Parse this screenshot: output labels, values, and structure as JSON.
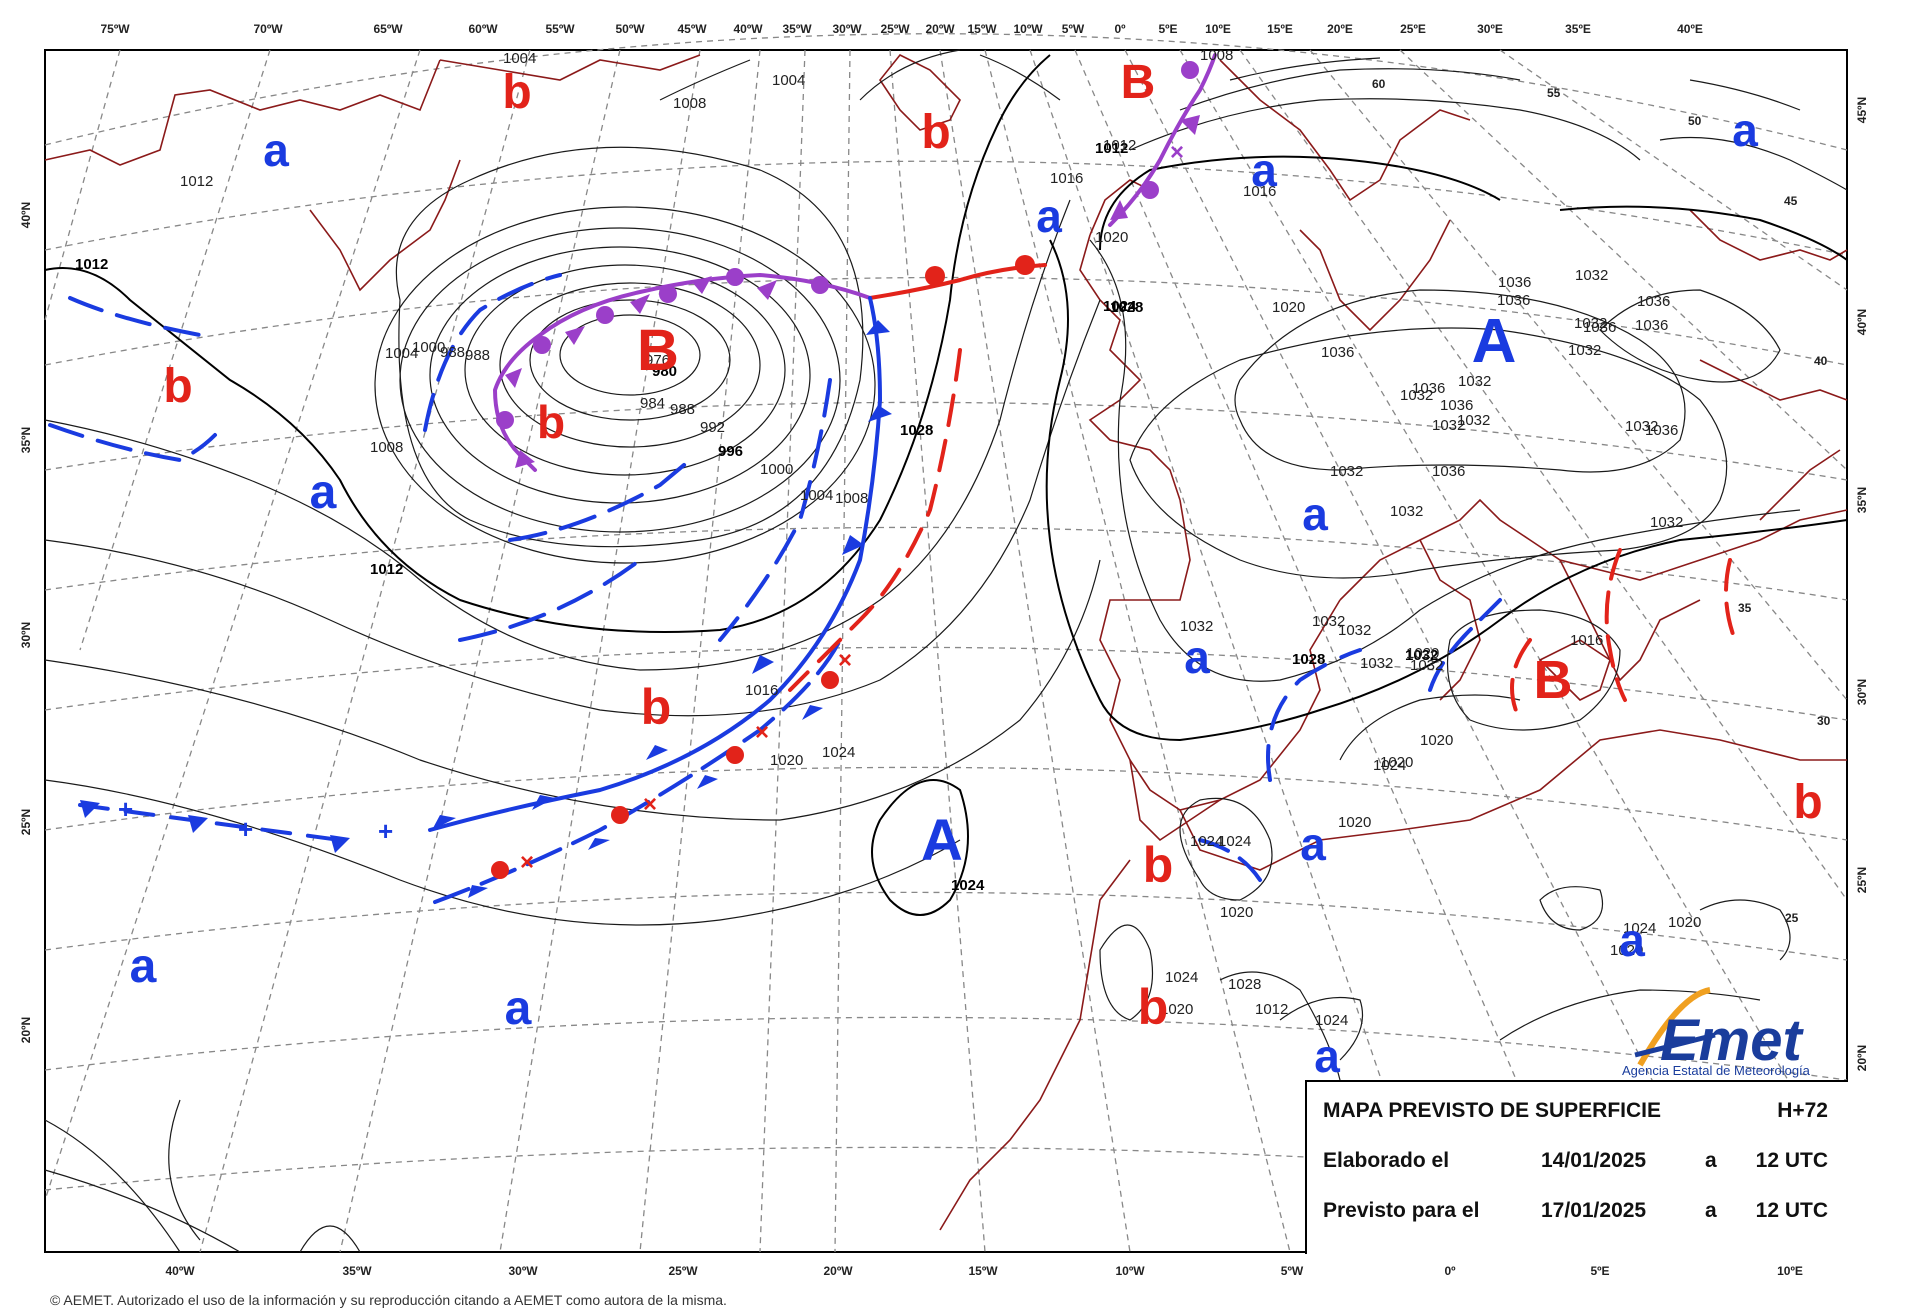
{
  "title_block": {
    "map_title": "MAPA PREVISTO DE SUPERFICIE",
    "lead_time": "H+72",
    "issued_label": "Elaborado el",
    "issued_date": "14/01/2025",
    "issued_at": "a",
    "issued_time": "12 UTC",
    "valid_label": "Previsto para el",
    "valid_date": "17/01/2025",
    "valid_at": "a",
    "valid_time": "12 UTC"
  },
  "logo": {
    "text": "AEMet",
    "subtitle": "Agencia Estatal de Meteorología"
  },
  "footer": {
    "text": "© AEMET. Autorizado el uso de la información y su reproducción citando a AEMET como autora de la misma."
  },
  "top_ticks": [
    "75ºW",
    "70ºW",
    "65ºW",
    "60ºW",
    "55ºW",
    "50ºW",
    "45ºW",
    "40ºW",
    "35ºW",
    "30ºW",
    "25ºW",
    "20ºW",
    "15ºW",
    "10ºW",
    "5ºW",
    "0º",
    "5ºE",
    "10ºE",
    "15ºE",
    "20ºE",
    "25ºE",
    "30ºE",
    "35ºE",
    "40ºE"
  ],
  "bottom_ticks": [
    "40ºW",
    "35ºW",
    "30ºW",
    "25ºW",
    "20ºW",
    "15ºW",
    "10ºW",
    "5ºW",
    "0º",
    "5ºE",
    "10ºE"
  ],
  "left_ticks": [
    "40ºN",
    "35ºN",
    "30ºN",
    "25ºN",
    "20ºN"
  ],
  "right_ticks": [
    "45ºN",
    "40ºN",
    "35ºN",
    "30ºN",
    "25ºN",
    "20ºN"
  ],
  "inner_lat_labels": [
    "60",
    "55",
    "50",
    "45",
    "40",
    "35",
    "30",
    "25"
  ],
  "pressure_centers": [
    {
      "letter": "B",
      "kind": "low-major"
    },
    {
      "letter": "B",
      "kind": "low-major"
    },
    {
      "letter": "B",
      "kind": "low-major"
    },
    {
      "letter": "A",
      "kind": "high-major"
    },
    {
      "letter": "A",
      "kind": "high-major"
    },
    {
      "letter": "b",
      "kind": "low-minor"
    },
    {
      "letter": "b",
      "kind": "low-minor"
    },
    {
      "letter": "b",
      "kind": "low-minor"
    },
    {
      "letter": "b",
      "kind": "low-minor"
    },
    {
      "letter": "b",
      "kind": "low-minor"
    },
    {
      "letter": "b",
      "kind": "low-minor"
    },
    {
      "letter": "b",
      "kind": "low-minor"
    },
    {
      "letter": "b",
      "kind": "low-minor"
    },
    {
      "letter": "a",
      "kind": "high-minor"
    },
    {
      "letter": "a",
      "kind": "high-minor"
    },
    {
      "letter": "a",
      "kind": "high-minor"
    },
    {
      "letter": "a",
      "kind": "high-minor"
    },
    {
      "letter": "a",
      "kind": "high-minor"
    },
    {
      "letter": "a",
      "kind": "high-minor"
    },
    {
      "letter": "a",
      "kind": "high-minor"
    },
    {
      "letter": "a",
      "kind": "high-minor"
    },
    {
      "letter": "a",
      "kind": "high-minor"
    },
    {
      "letter": "a",
      "kind": "high-minor"
    },
    {
      "letter": "a",
      "kind": "high-minor"
    },
    {
      "letter": "a",
      "kind": "high-minor"
    }
  ],
  "isobar_labels": [
    "1004",
    "1004",
    "1008",
    "1012",
    "1012",
    "1004",
    "1000",
    "988",
    "988",
    "976",
    "980",
    "984",
    "988",
    "992",
    "996",
    "1000",
    "1004",
    "1008",
    "1008",
    "1012",
    "1012",
    "1016",
    "1020",
    "1024",
    "1028",
    "1016",
    "1020",
    "1008",
    "1012",
    "1016",
    "1020",
    "1028",
    "1032",
    "1036",
    "1036",
    "1036",
    "1032",
    "1036",
    "1032",
    "1036",
    "1036",
    "1032",
    "1036",
    "1036",
    "1032",
    "1032",
    "1032",
    "1032",
    "1036",
    "1032",
    "1036",
    "1032",
    "1032",
    "1032",
    "1032",
    "1032",
    "1032",
    "1032",
    "1032",
    "1028",
    "1020",
    "1016",
    "1020",
    "1024",
    "1024",
    "1024",
    "1024",
    "1020",
    "1020",
    "1020",
    "1024",
    "1024",
    "1024",
    "1024",
    "1024",
    "1020",
    "1024",
    "1028",
    "1020",
    "1020",
    "1012"
  ],
  "fronts": [
    {
      "type": "occluded",
      "color": "#9b3fc9"
    },
    {
      "type": "warm",
      "color": "#e2231a"
    },
    {
      "type": "cold",
      "color": "#1a3be0"
    },
    {
      "type": "cold-frontogenesis",
      "color": "#1a3be0"
    },
    {
      "type": "warm-frontogenesis",
      "color": "#e2231a"
    },
    {
      "type": "occluded",
      "color": "#9b3fc9"
    }
  ],
  "colors": {
    "low": "#e2231a",
    "high": "#1a3be0",
    "coast": "#8b1a1a",
    "isobar": "#1a1a1a",
    "grid": "#777777",
    "occluded": "#9b3fc9",
    "logo_blue": "#1a3d9c",
    "logo_orange": "#f0a020"
  }
}
